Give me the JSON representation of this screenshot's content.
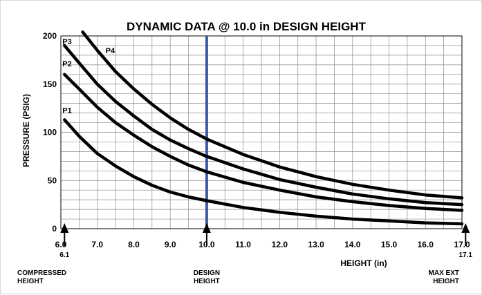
{
  "chart_data": {
    "type": "line",
    "title": "DYNAMIC DATA @ 10.0 in DESIGN HEIGHT",
    "xlabel": "HEIGHT (in)",
    "ylabel": "PRESSURE (PSIG)",
    "xlim": [
      6.0,
      17.0
    ],
    "ylim": [
      0,
      200
    ],
    "x_ticks": [
      6.0,
      7.0,
      8.0,
      9.0,
      10.0,
      11.0,
      12.0,
      13.0,
      14.0,
      15.0,
      16.0,
      17.0
    ],
    "x_tick_labels": [
      "6.0",
      "7.0",
      "8.0",
      "9.0",
      "10.0",
      "11.0",
      "12.0",
      "13.0",
      "14.0",
      "15.0",
      "16.0",
      "17.0"
    ],
    "y_ticks": [
      0,
      50,
      100,
      150,
      200
    ],
    "y_tick_labels": [
      "0",
      "50",
      "100",
      "150",
      "200"
    ],
    "grid": true,
    "legend": "inline labels at left end of each curve",
    "series_color": "#000000",
    "design_line_color": "#3a5bab",
    "design_height": 10.0,
    "series": [
      {
        "name": "P1",
        "x": [
          6.1,
          6.5,
          7.0,
          7.5,
          8.0,
          8.5,
          9.0,
          9.5,
          10.0,
          11.0,
          12.0,
          13.0,
          14.0,
          15.0,
          16.0,
          17.0
        ],
        "values": [
          113,
          96,
          78,
          65,
          54,
          45,
          38,
          33,
          29,
          22,
          17,
          13,
          10,
          8,
          6,
          5
        ]
      },
      {
        "name": "P2",
        "x": [
          6.1,
          6.5,
          7.0,
          7.5,
          8.0,
          8.5,
          9.0,
          9.5,
          10.0,
          11.0,
          12.0,
          13.0,
          14.0,
          15.0,
          16.0,
          17.0
        ],
        "values": [
          160,
          145,
          126,
          110,
          97,
          85,
          75,
          66,
          59,
          48,
          40,
          33,
          28,
          24,
          21,
          19
        ]
      },
      {
        "name": "P3",
        "x": [
          6.1,
          6.5,
          7.0,
          7.5,
          8.0,
          8.5,
          9.0,
          9.5,
          10.0,
          11.0,
          12.0,
          13.0,
          14.0,
          15.0,
          16.0,
          17.0
        ],
        "values": [
          190,
          172,
          150,
          132,
          117,
          103,
          92,
          83,
          75,
          62,
          51,
          43,
          36,
          31,
          27,
          25
        ]
      },
      {
        "name": "P4",
        "x": [
          6.6,
          7.0,
          7.5,
          8.0,
          8.5,
          9.0,
          9.5,
          10.0,
          11.0,
          12.0,
          13.0,
          14.0,
          15.0,
          16.0,
          17.0
        ],
        "values": [
          210,
          185,
          163,
          145,
          129,
          115,
          103,
          93,
          77,
          64,
          54,
          46,
          40,
          35,
          32
        ]
      }
    ],
    "annotations": [
      {
        "x": 6.1,
        "label_value": "6.1",
        "text_lines": [
          "COMPRESSED",
          "HEIGHT"
        ]
      },
      {
        "x": 10.0,
        "label_value": "",
        "text_lines": [
          "DESIGN",
          "HEIGHT"
        ]
      },
      {
        "x": 17.1,
        "label_value": "17.1",
        "text_lines": [
          "MAX EXT",
          "HEIGHT"
        ]
      }
    ]
  }
}
